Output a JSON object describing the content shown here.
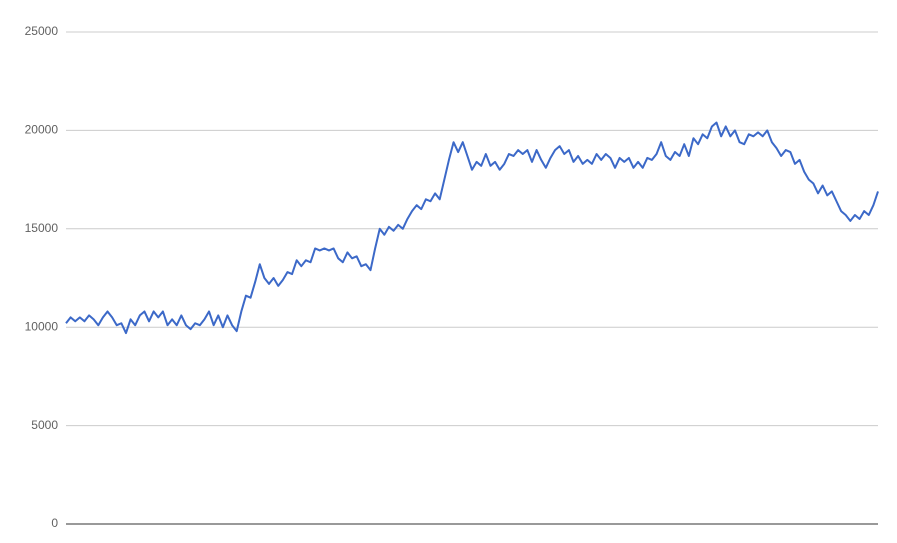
{
  "chart_data": {
    "type": "line",
    "color": "#3c69c8",
    "ylim": [
      0,
      25000
    ],
    "yticks": [
      0,
      5000,
      10000,
      15000,
      20000,
      25000
    ],
    "grid": true,
    "values": [
      10200,
      10500,
      10300,
      10500,
      10300,
      10600,
      10400,
      10100,
      10500,
      10800,
      10500,
      10100,
      10200,
      9700,
      10400,
      10100,
      10600,
      10800,
      10300,
      10800,
      10500,
      10800,
      10100,
      10400,
      10100,
      10600,
      10100,
      9900,
      10200,
      10100,
      10400,
      10800,
      10100,
      10600,
      10000,
      10600,
      10100,
      9800,
      10800,
      11600,
      11500,
      12300,
      13200,
      12500,
      12200,
      12500,
      12100,
      12400,
      12800,
      12700,
      13400,
      13100,
      13400,
      13300,
      14000,
      13900,
      14000,
      13900,
      14000,
      13500,
      13300,
      13800,
      13500,
      13600,
      13100,
      13200,
      12900,
      14000,
      15000,
      14700,
      15100,
      14900,
      15200,
      15000,
      15500,
      15900,
      16200,
      16000,
      16500,
      16400,
      16800,
      16500,
      17500,
      18500,
      19400,
      18900,
      19400,
      18700,
      18000,
      18400,
      18200,
      18800,
      18200,
      18400,
      18000,
      18300,
      18800,
      18700,
      19000,
      18800,
      19000,
      18400,
      19000,
      18500,
      18100,
      18600,
      19000,
      19200,
      18800,
      19000,
      18400,
      18700,
      18300,
      18500,
      18300,
      18800,
      18500,
      18800,
      18600,
      18100,
      18600,
      18400,
      18600,
      18100,
      18400,
      18100,
      18600,
      18500,
      18800,
      19400,
      18700,
      18500,
      18900,
      18700,
      19300,
      18700,
      19600,
      19300,
      19800,
      19600,
      20200,
      20400,
      19700,
      20200,
      19700,
      20000,
      19400,
      19300,
      19800,
      19700,
      19900,
      19700,
      20000,
      19400,
      19100,
      18700,
      19000,
      18900,
      18300,
      18500,
      17900,
      17500,
      17300,
      16800,
      17200,
      16700,
      16900,
      16400,
      15900,
      15700,
      15400,
      15700,
      15500,
      15900,
      15700,
      16200,
      16900
    ]
  }
}
